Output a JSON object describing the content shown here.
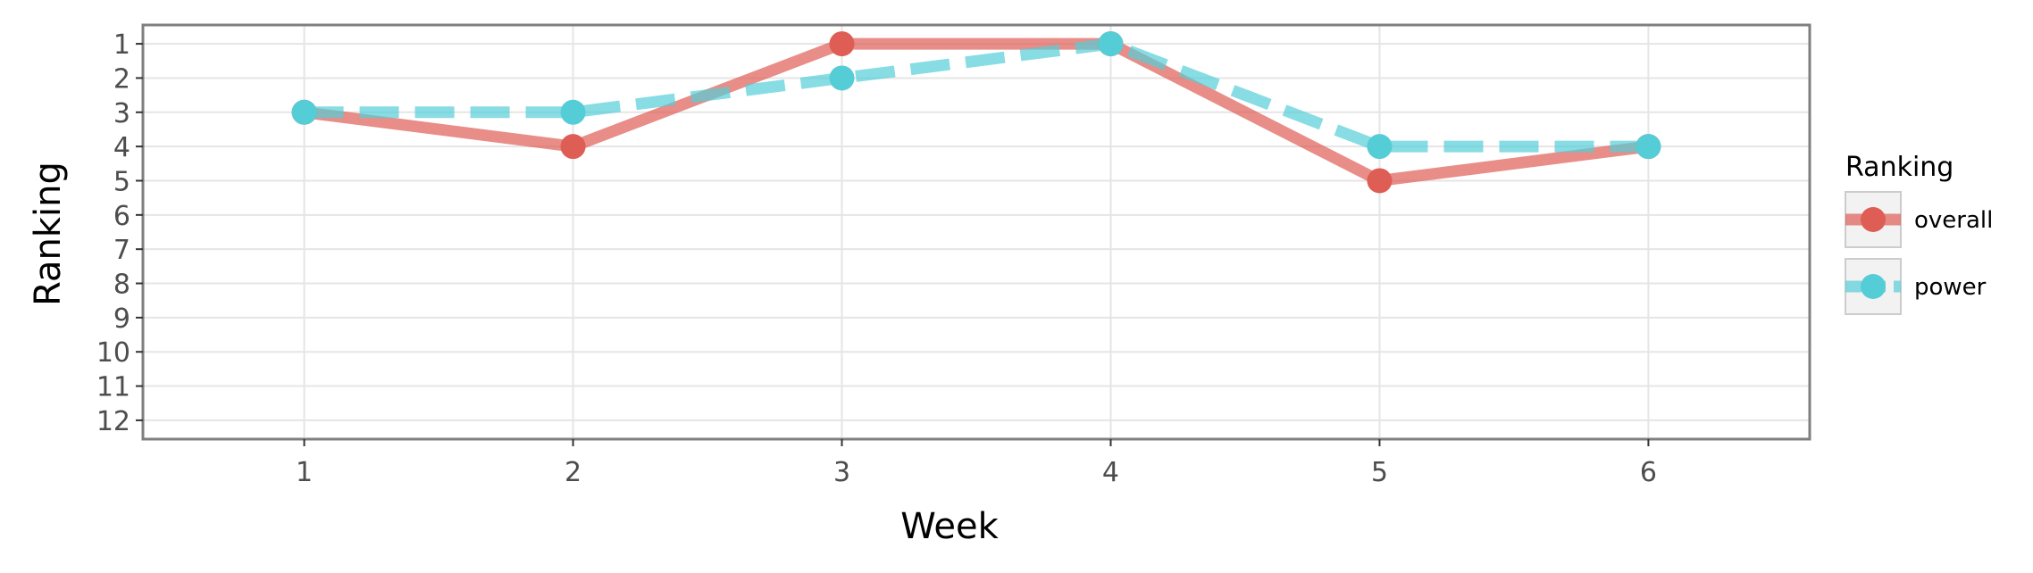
{
  "chart_data": {
    "type": "line",
    "x": [
      1,
      2,
      3,
      4,
      5,
      6
    ],
    "x_ticks": [
      "1",
      "2",
      "3",
      "4",
      "5",
      "6"
    ],
    "y_ticks": [
      "1",
      "2",
      "3",
      "4",
      "5",
      "6",
      "7",
      "8",
      "9",
      "10",
      "11",
      "12"
    ],
    "xlabel": "Week",
    "ylabel": "Ranking",
    "xlim": [
      0.4,
      6.6
    ],
    "ylim": [
      12.55,
      0.45
    ],
    "y_reversed": true,
    "grid": true,
    "legend": {
      "title": "Ranking",
      "placement": "right"
    },
    "series": [
      {
        "name": "overall",
        "values": [
          3,
          4,
          1,
          1,
          5,
          4
        ],
        "color": "#de5d54",
        "linestyle": "solid"
      },
      {
        "name": "power",
        "values": [
          3,
          3,
          2,
          1,
          4,
          4
        ],
        "color": "#55cdd7",
        "linestyle": "dashed"
      }
    ]
  }
}
